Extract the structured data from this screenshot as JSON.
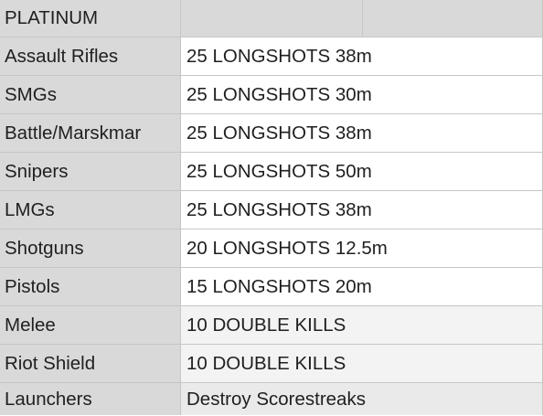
{
  "header": {
    "title": "PLATINUM"
  },
  "rows": [
    {
      "label": "Assault Rifles",
      "value": "25 LONGSHOTS 38m"
    },
    {
      "label": "SMGs",
      "value": "25 LONGSHOTS 30m"
    },
    {
      "label": "Battle/Marskmar",
      "value": "25 LONGSHOTS 38m"
    },
    {
      "label": "Snipers",
      "value": "25 LONGSHOTS 50m"
    },
    {
      "label": "LMGs",
      "value": "25 LONGSHOTS 38m"
    },
    {
      "label": "Shotguns",
      "value": "20 LONGSHOTS 12.5m"
    },
    {
      "label": "Pistols",
      "value": "15 LONGSHOTS 20m"
    },
    {
      "label": "Melee",
      "value": "10 DOUBLE KILLS"
    },
    {
      "label": "Riot Shield",
      "value": "10 DOUBLE KILLS"
    },
    {
      "label": "Launchers",
      "value": "Destroy Scorestreaks"
    }
  ]
}
